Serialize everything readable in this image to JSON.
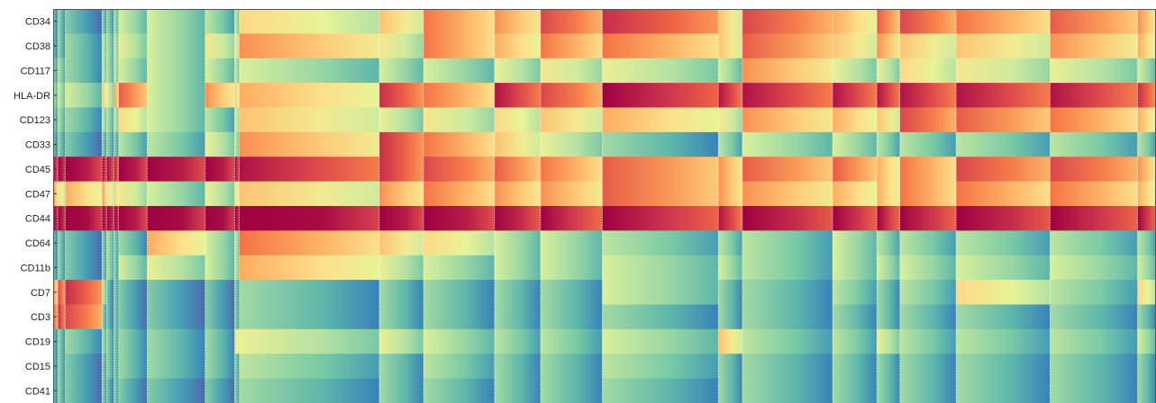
{
  "chart_data": {
    "type": "heatmap",
    "rows": [
      "CD34",
      "CD38",
      "CD117",
      "HLA-DR",
      "CD123",
      "CD33",
      "CD45",
      "CD47",
      "CD44",
      "CD64",
      "CD11b",
      "CD7",
      "CD3",
      "CD19",
      "CD15",
      "CD41"
    ],
    "colormap": [
      "#5e4fa2",
      "#3288bd",
      "#66c2a5",
      "#abdda4",
      "#e6f598",
      "#fee08b",
      "#fdae61",
      "#f46d43",
      "#d53e4f",
      "#9e0142"
    ],
    "value_range": [
      0,
      1
    ],
    "grid": false,
    "separator_color": "#ffffff",
    "clusters": [
      {
        "width": 5,
        "values": [
          0.15,
          0.15,
          0.2,
          0.25,
          0.2,
          0.15,
          0.9,
          0.6,
          0.95,
          0.15,
          0.15,
          0.6,
          0.7,
          0.15,
          0.15,
          0.15
        ]
      },
      {
        "width": 8,
        "values": [
          0.2,
          0.2,
          0.25,
          0.3,
          0.25,
          0.2,
          0.95,
          0.45,
          0.95,
          0.2,
          0.2,
          0.75,
          0.8,
          0.2,
          0.2,
          0.2
        ]
      },
      {
        "width": 40,
        "values": [
          0.15,
          0.2,
          0.2,
          0.3,
          0.2,
          0.15,
          0.95,
          0.55,
          0.98,
          0.15,
          0.15,
          0.8,
          0.75,
          0.2,
          0.15,
          0.15
        ]
      },
      {
        "width": 5,
        "values": [
          0.2,
          0.3,
          0.3,
          0.5,
          0.3,
          0.2,
          0.9,
          0.6,
          0.95,
          0.2,
          0.2,
          0.3,
          0.2,
          0.25,
          0.2,
          0.2
        ]
      },
      {
        "width": 8,
        "values": [
          0.2,
          0.25,
          0.25,
          0.35,
          0.25,
          0.2,
          0.9,
          0.45,
          0.95,
          0.25,
          0.25,
          0.15,
          0.15,
          0.2,
          0.2,
          0.15
        ]
      },
      {
        "width": 5,
        "values": [
          0.25,
          0.3,
          0.3,
          0.6,
          0.3,
          0.2,
          0.85,
          0.5,
          0.95,
          0.2,
          0.2,
          0.2,
          0.2,
          0.2,
          0.2,
          0.2
        ]
      },
      {
        "width": 31,
        "values": [
          0.3,
          0.35,
          0.3,
          0.7,
          0.45,
          0.25,
          0.95,
          0.4,
          0.95,
          0.2,
          0.3,
          0.15,
          0.15,
          0.2,
          0.2,
          0.15
        ]
      },
      {
        "width": 63,
        "values": [
          0.3,
          0.3,
          0.3,
          0.3,
          0.3,
          0.25,
          0.95,
          0.3,
          0.98,
          0.55,
          0.35,
          0.15,
          0.15,
          0.2,
          0.2,
          0.15
        ]
      },
      {
        "width": 32,
        "values": [
          0.25,
          0.4,
          0.3,
          0.6,
          0.25,
          0.35,
          0.95,
          0.35,
          0.98,
          0.3,
          0.3,
          0.15,
          0.15,
          0.2,
          0.2,
          0.15
        ]
      },
      {
        "width": 5,
        "values": [
          0.3,
          0.4,
          0.3,
          0.5,
          0.35,
          0.3,
          0.9,
          0.45,
          0.95,
          0.3,
          0.3,
          0.2,
          0.2,
          0.45,
          0.2,
          0.2
        ]
      },
      {
        "width": 152,
        "values": [
          0.45,
          0.6,
          0.3,
          0.55,
          0.5,
          0.6,
          0.85,
          0.5,
          0.98,
          0.65,
          0.55,
          0.2,
          0.2,
          0.35,
          0.25,
          0.2
        ]
      },
      {
        "width": 48,
        "values": [
          0.5,
          0.4,
          0.3,
          0.8,
          0.35,
          0.8,
          0.8,
          0.6,
          0.95,
          0.5,
          0.35,
          0.2,
          0.2,
          0.35,
          0.2,
          0.2
        ]
      },
      {
        "width": 77,
        "values": [
          0.65,
          0.65,
          0.3,
          0.65,
          0.4,
          0.65,
          0.75,
          0.65,
          0.95,
          0.45,
          0.3,
          0.2,
          0.2,
          0.3,
          0.25,
          0.2
        ]
      },
      {
        "width": 50,
        "values": [
          0.6,
          0.55,
          0.35,
          0.85,
          0.45,
          0.5,
          0.7,
          0.6,
          0.92,
          0.3,
          0.3,
          0.2,
          0.2,
          0.25,
          0.2,
          0.2
        ]
      },
      {
        "width": 67,
        "values": [
          0.75,
          0.65,
          0.4,
          0.75,
          0.5,
          0.35,
          0.65,
          0.6,
          0.88,
          0.3,
          0.3,
          0.2,
          0.2,
          0.25,
          0.2,
          0.2
        ]
      },
      {
        "width": 126,
        "values": [
          0.8,
          0.65,
          0.35,
          0.9,
          0.55,
          0.2,
          0.7,
          0.7,
          0.9,
          0.25,
          0.3,
          0.3,
          0.2,
          0.3,
          0.25,
          0.2
        ]
      },
      {
        "width": 26,
        "values": [
          0.5,
          0.5,
          0.3,
          0.85,
          0.4,
          0.25,
          0.6,
          0.6,
          0.85,
          0.25,
          0.3,
          0.2,
          0.2,
          0.5,
          0.2,
          0.2
        ]
      },
      {
        "width": 98,
        "values": [
          0.75,
          0.7,
          0.6,
          0.85,
          0.6,
          0.3,
          0.7,
          0.6,
          0.92,
          0.25,
          0.25,
          0.2,
          0.2,
          0.25,
          0.2,
          0.2
        ]
      },
      {
        "width": 48,
        "values": [
          0.55,
          0.5,
          0.35,
          0.85,
          0.55,
          0.3,
          0.7,
          0.55,
          0.9,
          0.3,
          0.3,
          0.25,
          0.2,
          0.25,
          0.2,
          0.2
        ]
      },
      {
        "width": 25,
        "values": [
          0.7,
          0.6,
          0.35,
          0.85,
          0.5,
          0.25,
          0.55,
          0.55,
          0.88,
          0.25,
          0.3,
          0.2,
          0.2,
          0.35,
          0.2,
          0.2
        ]
      },
      {
        "width": 61,
        "values": [
          0.75,
          0.5,
          0.45,
          0.85,
          0.75,
          0.25,
          0.65,
          0.65,
          0.9,
          0.25,
          0.3,
          0.25,
          0.2,
          0.25,
          0.2,
          0.2
        ]
      },
      {
        "width": 102,
        "values": [
          0.65,
          0.5,
          0.4,
          0.85,
          0.7,
          0.25,
          0.75,
          0.65,
          0.92,
          0.25,
          0.3,
          0.45,
          0.2,
          0.25,
          0.2,
          0.2
        ]
      },
      {
        "width": 95,
        "values": [
          0.7,
          0.6,
          0.35,
          0.85,
          0.65,
          0.25,
          0.75,
          0.65,
          0.9,
          0.25,
          0.3,
          0.25,
          0.2,
          0.25,
          0.2,
          0.2
        ]
      },
      {
        "width": 20,
        "values": [
          0.6,
          0.55,
          0.3,
          0.8,
          0.55,
          0.25,
          0.6,
          0.55,
          0.88,
          0.25,
          0.3,
          0.45,
          0.2,
          0.3,
          0.2,
          0.2
        ]
      }
    ]
  }
}
